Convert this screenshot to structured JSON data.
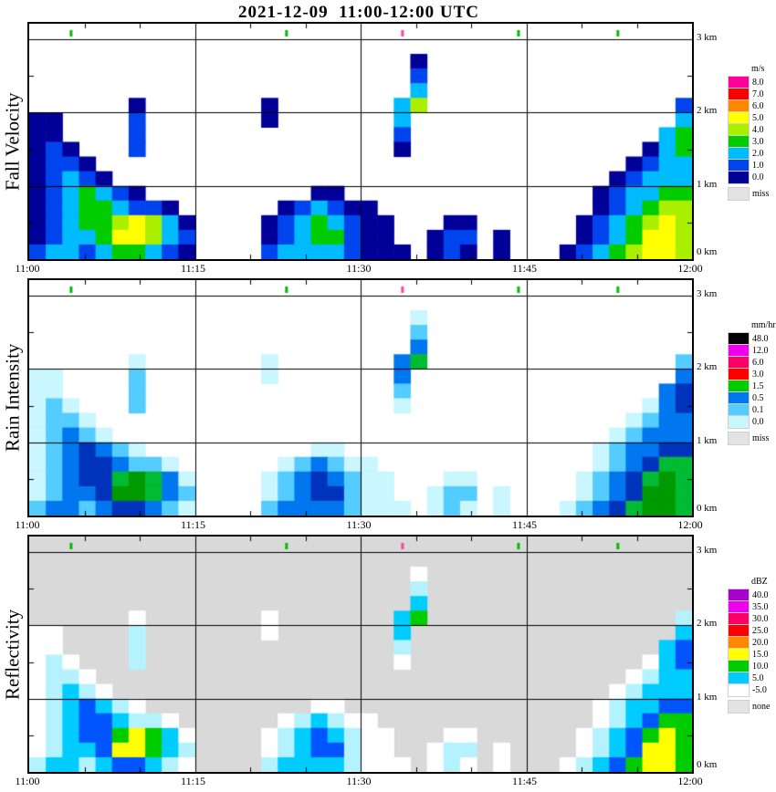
{
  "chart_data": {
    "type": "heatmap",
    "title": "2021-12-09  11:00-12:00 UTC",
    "x_ticks": [
      "11:00",
      "11:15",
      "11:30",
      "11:45",
      "12:00"
    ],
    "y_ticks": [
      "3 km",
      "2 km",
      "1 km",
      "0 km"
    ],
    "x_range_minutes": 60,
    "y_range_km": [
      0,
      3
    ],
    "grid": {
      "cols": 40,
      "note": "time-height cells, row 0 = 2.8-3.0 km, row 14 = 0-0.2 km, '.'=no echo, 1..6 = increasing echo strength",
      "cells": [
        "........................................",
        ".......................1................",
        ".......................2................",
        ".......................3................",
        "......1.......1.......35...............2",
        "11....2.......1.......3................3",
        "11....2...............2...............34",
        "121...2...............1..............134",
        "1221................................1233",
        "12321..............................12333",
        "1234321..........11...............123344",
        "123443221......123211.............123455",
        "1234456531....12343211...11......1234565",
        "1233466532....12344211..122.1....1234665",
        "2332344321....233332111.121.1...12345665"
      ]
    },
    "top_ticks": [
      {
        "col": 2,
        "color": "#00bb00"
      },
      {
        "col": 15,
        "color": "#00bb00"
      },
      {
        "col": 22,
        "color": "#ff4499"
      },
      {
        "col": 29,
        "color": "#00bb00"
      },
      {
        "col": 35,
        "color": "#00bb00"
      }
    ],
    "panels": [
      {
        "label": "Fall Velocity",
        "unit": "m/s",
        "background": "#ffffff",
        "palette": {
          "1": "#000099",
          "2": "#0044ee",
          "3": "#00bbff",
          "4": "#00cc00",
          "5": "#aaee00",
          "6": "#ffff00"
        },
        "colorbar": [
          {
            "c": "#ff0099",
            "l": "8.0"
          },
          {
            "c": "#ff0000",
            "l": "7.0"
          },
          {
            "c": "#ff8800",
            "l": "6.0"
          },
          {
            "c": "#ffff00",
            "l": "5.0"
          },
          {
            "c": "#aaee00",
            "l": "4.0"
          },
          {
            "c": "#00cc00",
            "l": "3.0"
          },
          {
            "c": "#00bbff",
            "l": "2.0"
          },
          {
            "c": "#0044ee",
            "l": "1.0"
          },
          {
            "c": "#000099",
            "l": "0.0"
          },
          {
            "c": "#e3e3e3",
            "l": "miss",
            "gap": true
          }
        ]
      },
      {
        "label": "Rain Intensity",
        "unit": "mm/hr",
        "background": "#ffffff",
        "palette": {
          "1": "#c9f6ff",
          "2": "#55ccff",
          "3": "#0077ee",
          "4": "#0033bb",
          "5": "#00bb33",
          "6": "#009900"
        },
        "colorbar": [
          {
            "c": "#000000",
            "l": "48.0"
          },
          {
            "c": "#ee00ee",
            "l": "12.0"
          },
          {
            "c": "#ff0066",
            "l": "6.0"
          },
          {
            "c": "#ff0000",
            "l": "3.0"
          },
          {
            "c": "#00cc00",
            "l": "1.5"
          },
          {
            "c": "#0077ee",
            "l": "0.5"
          },
          {
            "c": "#55ccff",
            "l": "0.1"
          },
          {
            "c": "#c9f6ff",
            "l": "0.0"
          },
          {
            "c": "#e3e3e3",
            "l": "miss",
            "gap": true
          }
        ]
      },
      {
        "label": "Reflectivity",
        "unit": "dBZ",
        "background": "#d9d9d9",
        "palette": {
          "1": "#ffffff",
          "2": "#b5f2ff",
          "3": "#00ccff",
          "4": "#0055ff",
          "5": "#00cc00",
          "6": "#ffff00"
        },
        "colorbar": [
          {
            "c": "#aa00cc",
            "l": "40.0"
          },
          {
            "c": "#ee00ee",
            "l": "35.0"
          },
          {
            "c": "#ff0066",
            "l": "30.0"
          },
          {
            "c": "#ff0000",
            "l": "25.0"
          },
          {
            "c": "#ff8800",
            "l": "20.0"
          },
          {
            "c": "#ffff00",
            "l": "15.0"
          },
          {
            "c": "#00cc00",
            "l": "10.0"
          },
          {
            "c": "#00ccff",
            "l": "5.0"
          },
          {
            "c": "#ffffff",
            "l": "-5.0"
          },
          {
            "c": "#e3e3e3",
            "l": "none",
            "gap": true
          }
        ]
      }
    ]
  }
}
